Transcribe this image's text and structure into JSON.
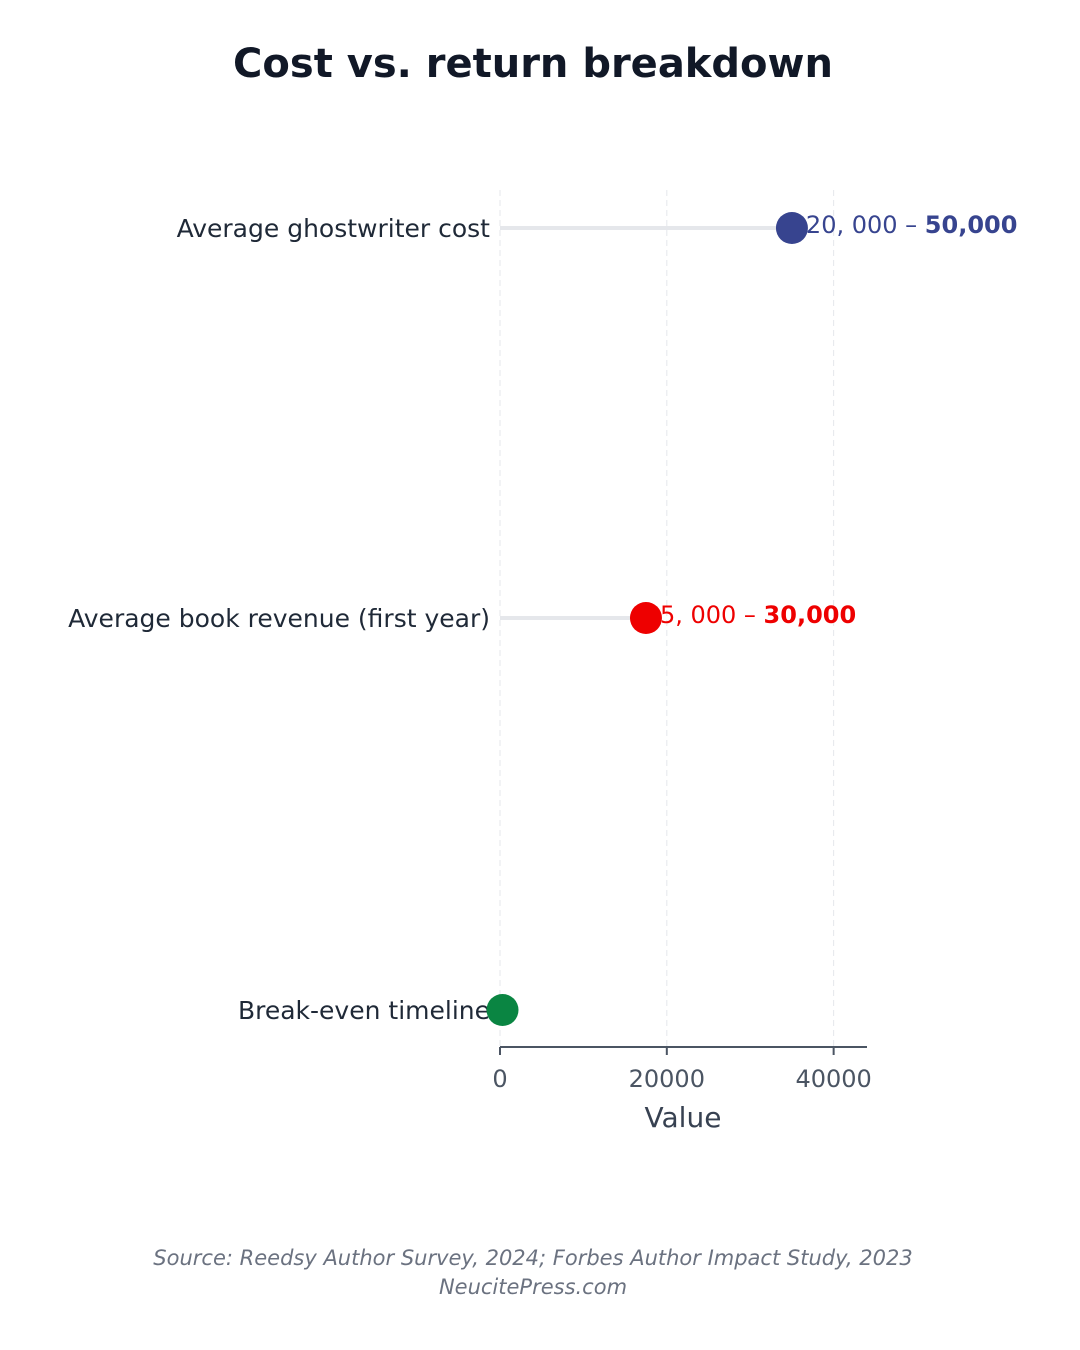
{
  "chart_data": {
    "type": "lollipop",
    "title": "Cost vs. return breakdown",
    "categories": [
      "Average ghostwriter cost",
      "Average book revenue (first year)",
      "Break-even timeline"
    ],
    "values": [
      35000,
      17500,
      300
    ],
    "value_labels": [
      "20, 000 – 50,000",
      "5, 000 – 30,000",
      null
    ],
    "colors": [
      "#37448f",
      "#ee0000",
      "#0a8542"
    ],
    "xlim": [
      0,
      44000
    ],
    "xticks": [
      0,
      20000,
      40000
    ],
    "xlabel": "Value",
    "grid": true,
    "source": "Source: Reedsy Author Survey, 2024; Forbes Author Impact Study, 2023",
    "footer": "NeucitePress.com"
  }
}
